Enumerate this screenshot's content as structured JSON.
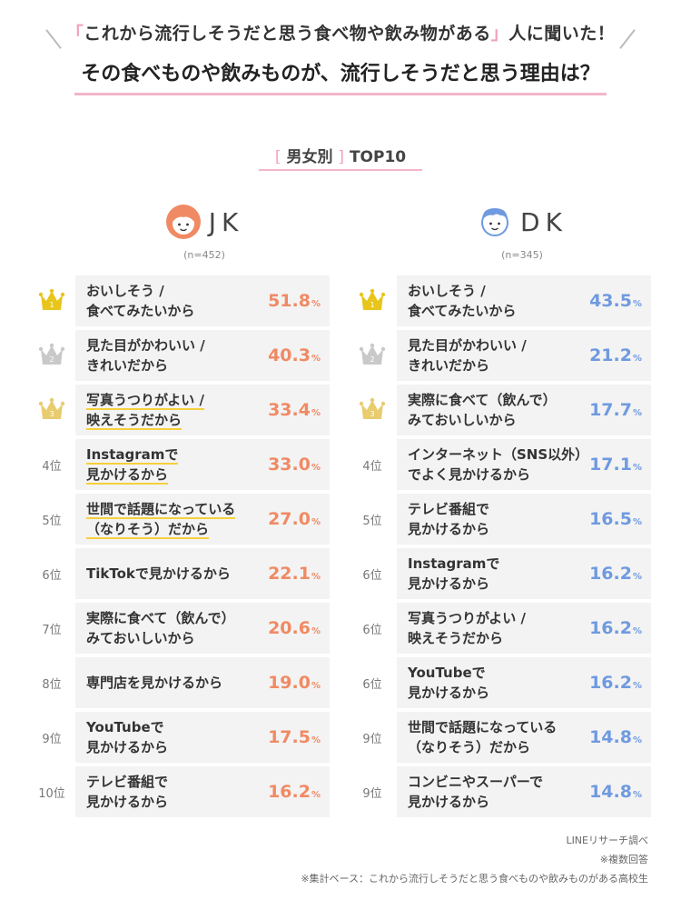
{
  "header": {
    "subtitle_open": "「",
    "subtitle_text": "これから流行しそうだと思う食べ物や飲み物がある",
    "subtitle_close": "」",
    "subtitle_tail": "人に聞いた！",
    "title": "その食べものや飲みものが、流行しそうだと思う理由は？"
  },
  "section": {
    "open": "[",
    "text": "男女別",
    "close": "]",
    "suffix": "TOP10"
  },
  "colors": {
    "jk": "#f08a64",
    "dk": "#6f9ae0",
    "gold": "#e8c51a",
    "silver": "#c9c9c9",
    "bronze": "#e8cc6e",
    "underline": "#f5cf3c",
    "accent_pink": "#f2b6c8"
  },
  "chart_data": [
    {
      "type": "table",
      "group": "JK",
      "n": "(n=452)",
      "unit": "%",
      "rows": [
        {
          "rank": "1",
          "label_lines": [
            "おいしそう /",
            "食べてみたいから"
          ],
          "value": "51.8",
          "underline": false
        },
        {
          "rank": "2",
          "label_lines": [
            "見た目がかわいい /",
            "きれいだから"
          ],
          "value": "40.3",
          "underline": false
        },
        {
          "rank": "3",
          "label_lines": [
            "写真うつりがよい /",
            "映えそうだから"
          ],
          "value": "33.4",
          "underline": true
        },
        {
          "rank": "4位",
          "label_lines": [
            "Instagramで",
            "見かけるから"
          ],
          "value": "33.0",
          "underline": true
        },
        {
          "rank": "5位",
          "label_lines": [
            "世間で話題になっている",
            "（なりそう）だから"
          ],
          "value": "27.0",
          "underline": true
        },
        {
          "rank": "6位",
          "label_lines": [
            "TikTokで見かけるから"
          ],
          "value": "22.1",
          "underline": false
        },
        {
          "rank": "7位",
          "label_lines": [
            "実際に食べて（飲んで）",
            "みておいしいから"
          ],
          "value": "20.6",
          "underline": false
        },
        {
          "rank": "8位",
          "label_lines": [
            "専門店を見かけるから"
          ],
          "value": "19.0",
          "underline": false
        },
        {
          "rank": "9位",
          "label_lines": [
            "YouTubeで",
            "見かけるから"
          ],
          "value": "17.5",
          "underline": false
        },
        {
          "rank": "10位",
          "label_lines": [
            "テレビ番組で",
            "見かけるから"
          ],
          "value": "16.2",
          "underline": false
        }
      ]
    },
    {
      "type": "table",
      "group": "DK",
      "n": "(n=345)",
      "unit": "%",
      "rows": [
        {
          "rank": "1",
          "label_lines": [
            "おいしそう /",
            "食べてみたいから"
          ],
          "value": "43.5",
          "underline": false
        },
        {
          "rank": "2",
          "label_lines": [
            "見た目がかわいい /",
            "きれいだから"
          ],
          "value": "21.2",
          "underline": false
        },
        {
          "rank": "3",
          "label_lines": [
            "実際に食べて（飲んで）",
            "みておいしいから"
          ],
          "value": "17.7",
          "underline": false
        },
        {
          "rank": "4位",
          "label_lines": [
            "インターネット（SNS以外）",
            "でよく見かけるから"
          ],
          "value": "17.1",
          "underline": false
        },
        {
          "rank": "5位",
          "label_lines": [
            "テレビ番組で",
            "見かけるから"
          ],
          "value": "16.5",
          "underline": false
        },
        {
          "rank": "6位",
          "label_lines": [
            "Instagramで",
            "見かけるから"
          ],
          "value": "16.2",
          "underline": false
        },
        {
          "rank": "6位",
          "label_lines": [
            "写真うつりがよい /",
            "映えそうだから"
          ],
          "value": "16.2",
          "underline": false
        },
        {
          "rank": "6位",
          "label_lines": [
            "YouTubeで",
            "見かけるから"
          ],
          "value": "16.2",
          "underline": false
        },
        {
          "rank": "9位",
          "label_lines": [
            "世間で話題になっている",
            "（なりそう）だから"
          ],
          "value": "14.8",
          "underline": false
        },
        {
          "rank": "9位",
          "label_lines": [
            "コンビニやスーパーで",
            "見かけるから"
          ],
          "value": "14.8",
          "underline": false
        }
      ]
    }
  ],
  "footer": {
    "source": "LINEリサーチ調べ",
    "note1": "※複数回答",
    "note2": "※集計ベース：これから流行しそうだと思う食べものや飲みものがある高校生"
  }
}
